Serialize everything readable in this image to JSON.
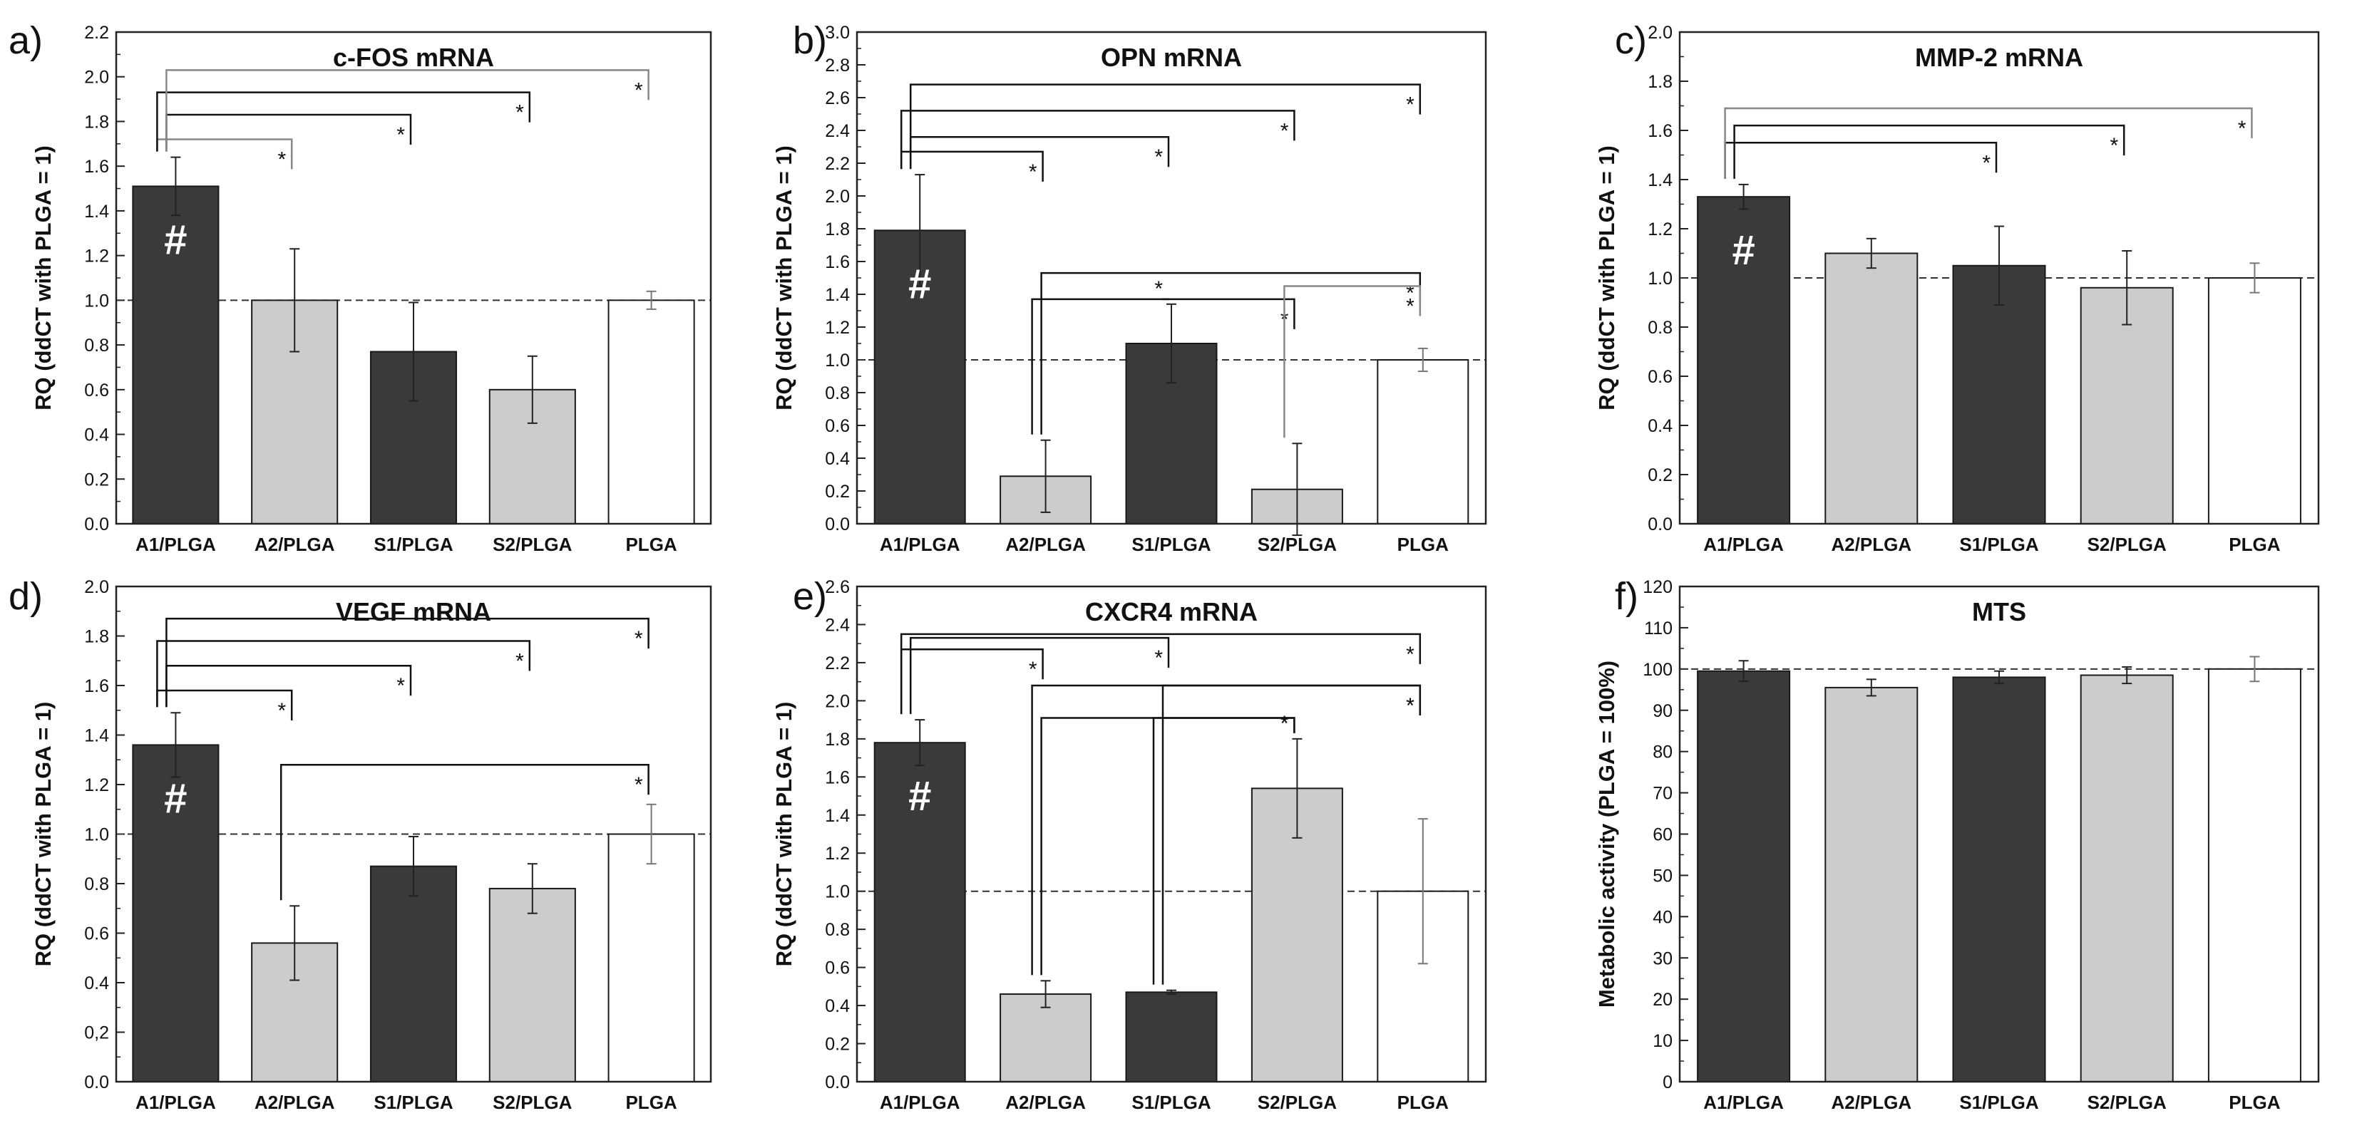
{
  "colors": {
    "dark_bar": "#3a3a3a",
    "light_bar": "#cccccc",
    "white_bar": "#ffffff",
    "axis": "#222222",
    "ref_line": "#333333",
    "grey_bracket": "#888888"
  },
  "chart_data": [
    {
      "panel": "a)",
      "type": "bar",
      "title": "c-FOS mRNA",
      "ylabel": "RQ (ddCT with PLGA = 1)",
      "ylim": [
        0,
        2.2
      ],
      "ytick_step": 0.2,
      "ytick_decimals": 1,
      "ytick_labels": [
        "0.0",
        "0.2",
        "0.4",
        "0.6",
        "0.8",
        "1.0",
        "1.2",
        "1.4",
        "1.6",
        "1.8",
        "2.0",
        "2.2"
      ],
      "reference_line": 1.0,
      "categories": [
        "A1/PLGA",
        "A2/PLGA",
        "S1/PLGA",
        "S2/PLGA",
        "PLGA"
      ],
      "values": [
        1.51,
        1.0,
        0.77,
        0.6,
        1.0
      ],
      "errors": [
        0.13,
        0.23,
        0.22,
        0.15,
        0.04
      ],
      "fills": [
        "dark",
        "light",
        "dark",
        "light",
        "white"
      ],
      "hash_on": [
        0
      ],
      "significance": [
        {
          "from": 0,
          "to": 1,
          "y": 1.72,
          "label": "*",
          "grey": true
        },
        {
          "from": 0,
          "to": 2,
          "y": 1.83,
          "label": "*",
          "grey": false
        },
        {
          "from": 0,
          "to": 3,
          "y": 1.93,
          "label": "*",
          "grey": false
        },
        {
          "from": 0,
          "to": 4,
          "y": 2.03,
          "label": "*",
          "grey": true
        }
      ]
    },
    {
      "panel": "b)",
      "type": "bar",
      "title": "OPN mRNA",
      "ylabel": "RQ (ddCT with PLGA = 1)",
      "ylim": [
        0,
        3.0
      ],
      "ytick_step": 0.2,
      "ytick_decimals": 1,
      "ytick_labels": [
        "0.0",
        "0.2",
        "0.4",
        "0.6",
        "0.8",
        "1.0",
        "1.2",
        "1.4",
        "1.6",
        "1.8",
        "2.0",
        "2.2",
        "2.4",
        "2.6",
        "2.8",
        "3.0"
      ],
      "reference_line": 1.0,
      "categories": [
        "A1/PLGA",
        "A2/PLGA",
        "S1/PLGA",
        "S2/PLGA",
        "PLGA"
      ],
      "values": [
        1.79,
        0.29,
        1.1,
        0.21,
        1.0
      ],
      "errors": [
        0.34,
        0.22,
        0.24,
        0.28,
        0.07
      ],
      "fills": [
        "dark",
        "light",
        "dark",
        "light",
        "white"
      ],
      "hash_on": [
        0
      ],
      "significance": [
        {
          "from": 0,
          "to": 1,
          "y": 2.27,
          "label": "*",
          "grey": false
        },
        {
          "from": 0,
          "to": 2,
          "y": 2.36,
          "label": "*",
          "grey": false
        },
        {
          "from": 0,
          "to": 3,
          "y": 2.52,
          "label": "*",
          "grey": false
        },
        {
          "from": 0,
          "to": 4,
          "y": 2.68,
          "label": "*",
          "grey": false
        },
        {
          "from": 1,
          "to": 2,
          "y": 1.37,
          "label": "*",
          "grey": false
        },
        {
          "from": 1,
          "to": 4,
          "y": 1.53,
          "label": "*",
          "grey": false
        },
        {
          "from": 2,
          "to": 3,
          "y": 1.37,
          "label": "*",
          "grey": false
        },
        {
          "from": 3,
          "to": 4,
          "y": 1.45,
          "label": "*",
          "grey": true
        }
      ]
    },
    {
      "panel": "c)",
      "type": "bar",
      "title": "MMP-2 mRNA",
      "ylabel": "RQ (ddCT with PLGA = 1)",
      "ylim": [
        0,
        2.0
      ],
      "ytick_step": 0.2,
      "ytick_decimals": 1,
      "ytick_labels": [
        "0.0",
        "0.2",
        "0.4",
        "0.6",
        "0.8",
        "1.0",
        "1.2",
        "1.4",
        "1.6",
        "1.8",
        "2.0"
      ],
      "reference_line": 1.0,
      "categories": [
        "A1/PLGA",
        "A2/PLGA",
        "S1/PLGA",
        "S2/PLGA",
        "PLGA"
      ],
      "values": [
        1.33,
        1.1,
        1.05,
        0.96,
        1.0
      ],
      "errors": [
        0.05,
        0.06,
        0.16,
        0.15,
        0.06
      ],
      "fills": [
        "dark",
        "light",
        "dark",
        "light",
        "white"
      ],
      "hash_on": [
        0
      ],
      "significance": [
        {
          "from": 0,
          "to": 2,
          "y": 1.55,
          "label": "*",
          "grey": false
        },
        {
          "from": 0,
          "to": 3,
          "y": 1.62,
          "label": "*",
          "grey": false
        },
        {
          "from": 0,
          "to": 4,
          "y": 1.69,
          "label": "*",
          "grey": true
        }
      ]
    },
    {
      "panel": "d)",
      "type": "bar",
      "title": "VEGF mRNA",
      "ylabel": "RQ (ddCT with PLGA = 1)",
      "ylim": [
        0,
        2.0
      ],
      "ytick_step": 0.2,
      "ytick_decimals": 1,
      "ytick_labels": [
        "0.0",
        "0,2",
        "0.4",
        "0.6",
        "0.8",
        "1.0",
        "1.2",
        "1.4",
        "1.6",
        "1.8",
        "2.0"
      ],
      "reference_line": 1.0,
      "categories": [
        "A1/PLGA",
        "A2/PLGA",
        "S1/PLGA",
        "S2/PLGA",
        "PLGA"
      ],
      "values": [
        1.36,
        0.56,
        0.87,
        0.78,
        1.0
      ],
      "errors": [
        0.13,
        0.15,
        0.12,
        0.1,
        0.12
      ],
      "fills": [
        "dark",
        "light",
        "dark",
        "light",
        "white"
      ],
      "hash_on": [
        0
      ],
      "significance": [
        {
          "from": 0,
          "to": 1,
          "y": 1.58,
          "label": "*",
          "grey": false
        },
        {
          "from": 0,
          "to": 2,
          "y": 1.68,
          "label": "*",
          "grey": false
        },
        {
          "from": 0,
          "to": 3,
          "y": 1.78,
          "label": "*",
          "grey": false
        },
        {
          "from": 0,
          "to": 4,
          "y": 1.87,
          "label": "*",
          "grey": false
        },
        {
          "from": 1,
          "to": 4,
          "y": 1.28,
          "label": "*",
          "grey": false
        }
      ]
    },
    {
      "panel": "e)",
      "type": "bar",
      "title": "CXCR4 mRNA",
      "ylabel": "RQ (ddCT with PLGA = 1)",
      "ylim": [
        0,
        2.6
      ],
      "ytick_step": 0.2,
      "ytick_decimals": 1,
      "ytick_labels": [
        "0.0",
        "0.2",
        "0.4",
        "0.6",
        "0.8",
        "1.0",
        "1.2",
        "1.4",
        "1.6",
        "1.8",
        "2.0",
        "2.2",
        "2.4",
        "2.6"
      ],
      "reference_line": 1.0,
      "categories": [
        "A1/PLGA",
        "A2/PLGA",
        "S1/PLGA",
        "S2/PLGA",
        "PLGA"
      ],
      "values": [
        1.78,
        0.46,
        0.47,
        1.54,
        1.0
      ],
      "errors": [
        0.12,
        0.07,
        0.01,
        0.26,
        0.38
      ],
      "fills": [
        "dark",
        "light",
        "dark",
        "light",
        "white"
      ],
      "hash_on": [
        0
      ],
      "significance": [
        {
          "from": 0,
          "to": 1,
          "y": 2.27,
          "label": "*",
          "grey": false
        },
        {
          "from": 0,
          "to": 2,
          "y": 2.33,
          "label": "*",
          "grey": false
        },
        {
          "from": 0,
          "to": 4,
          "y": 2.35,
          "label": "*",
          "grey": false
        },
        {
          "from": 1,
          "to": 3,
          "y": 1.91,
          "label": "*",
          "grey": false
        },
        {
          "from": 1,
          "to": 4,
          "y": 2.08,
          "label": "*",
          "grey": false
        },
        {
          "from": 2,
          "to": 3,
          "y": 1.91,
          "label": "*",
          "grey": false
        },
        {
          "from": 2,
          "to": 4,
          "y": 2.08,
          "label": "*",
          "grey": false
        }
      ]
    },
    {
      "panel": "f)",
      "type": "bar",
      "title": "MTS",
      "ylabel": "Metabolic activity (PLGA = 100%)",
      "ylim": [
        0,
        120
      ],
      "ytick_step": 10,
      "ytick_decimals": 0,
      "ytick_labels": [
        "0",
        "10",
        "20",
        "30",
        "40",
        "50",
        "60",
        "70",
        "80",
        "90",
        "100",
        "110",
        "120"
      ],
      "reference_line": 100,
      "categories": [
        "A1/PLGA",
        "A2/PLGA",
        "S1/PLGA",
        "S2/PLGA",
        "PLGA"
      ],
      "values": [
        99.5,
        95.5,
        98,
        98.5,
        100
      ],
      "errors": [
        2.5,
        2,
        1.5,
        2,
        3
      ],
      "fills": [
        "dark",
        "light",
        "dark",
        "light",
        "white"
      ],
      "hash_on": [],
      "significance": []
    }
  ],
  "hash_label": "#"
}
